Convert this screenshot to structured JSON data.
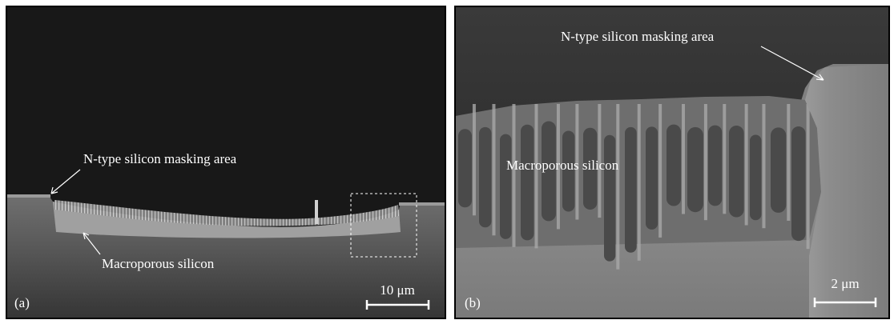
{
  "panels": [
    {
      "label": "(a)",
      "annotations": [
        "N-type silicon masking area",
        "Macroporous silicon"
      ],
      "scale_bar": "10 μm"
    },
    {
      "label": "(b)",
      "annotations": [
        "N-type silicon masking area",
        "Macroporous silicon"
      ],
      "scale_bar": "2 μm"
    }
  ]
}
